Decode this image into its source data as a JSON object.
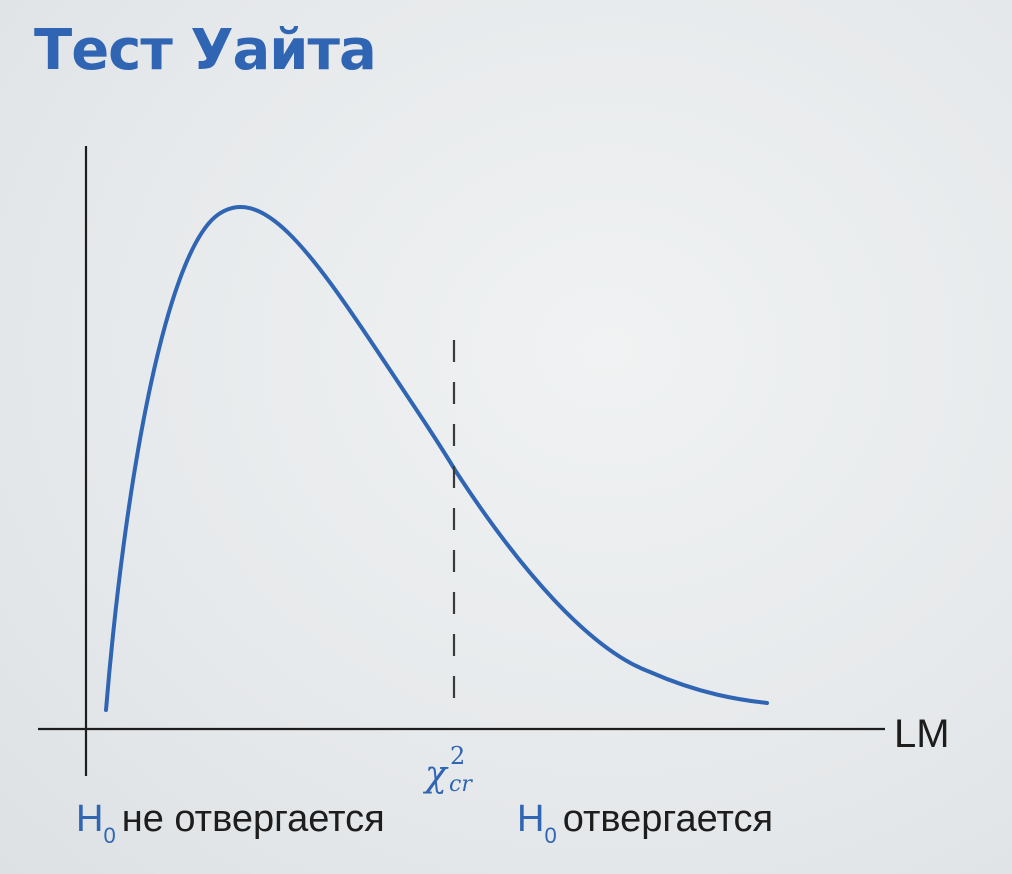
{
  "title": "Тест Уайта",
  "axis": {
    "x_label": "LM"
  },
  "critical_value": {
    "symbol": "χ",
    "superscript": "2",
    "subscript": "cr"
  },
  "regions": {
    "left": {
      "symbol": "H",
      "subscript": "0",
      "text": "не отвергается"
    },
    "right": {
      "symbol": "H",
      "subscript": "0",
      "text": "отвергается"
    }
  },
  "colors": {
    "accent": "#2f65b3",
    "axis": "#1d1d1d",
    "dashed_line": "#3a3a3a"
  }
}
